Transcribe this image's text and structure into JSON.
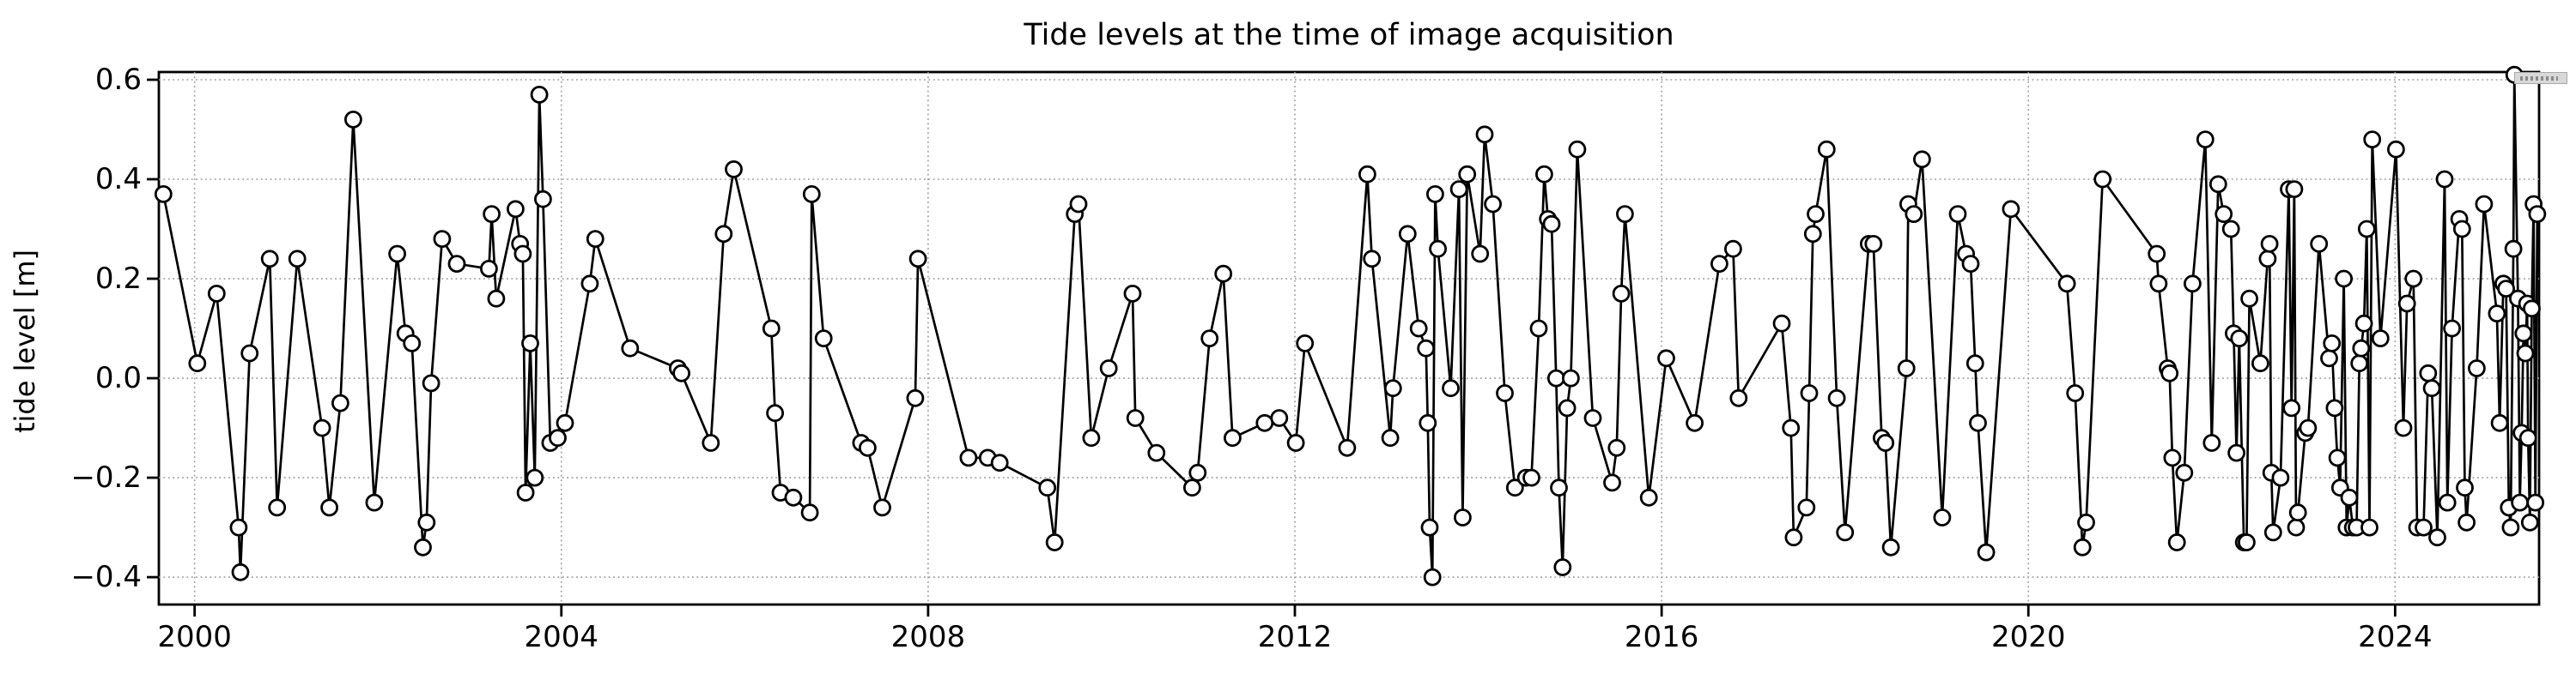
{
  "title": "Tide levels at the time of image acquisition",
  "y_axis_label": "tide level [m]",
  "colors": {
    "line": "#000000",
    "marker_fill": "#ffffff",
    "marker_stroke": "#000000",
    "grid": "#999999",
    "spine": "#000000",
    "background": "#ffffff",
    "artifact_fill": "#d8d8d8"
  },
  "chart_data": {
    "type": "line",
    "title": "Tide levels at the time of image acquisition",
    "xlabel": "",
    "ylabel": "tide level [m]",
    "series_name": "tide level",
    "marker": "open-circle",
    "grid": "dotted",
    "legend": "none",
    "xlim": [
      1999.61,
      2025.57
    ],
    "ylim": [
      -0.455,
      0.6155
    ],
    "xticks": [
      2000,
      2004,
      2008,
      2012,
      2016,
      2020,
      2024
    ],
    "xtick_labels": [
      "2000",
      "2004",
      "2008",
      "2012",
      "2016",
      "2020",
      "2024"
    ],
    "yticks": [
      0.6,
      0.4,
      0.2,
      0.0,
      -0.2,
      -0.4
    ],
    "ytick_labels": [
      "0.6",
      "0.4",
      "0.2",
      "0.0",
      "−0.2",
      "−0.4"
    ],
    "points": [
      [
        1999.66,
        0.37
      ],
      [
        2000.03,
        0.03
      ],
      [
        2000.24,
        0.17
      ],
      [
        2000.48,
        -0.3
      ],
      [
        2000.5,
        -0.39
      ],
      [
        2000.6,
        0.05
      ],
      [
        2000.82,
        0.24
      ],
      [
        2000.9,
        -0.26
      ],
      [
        2001.12,
        0.24
      ],
      [
        2001.39,
        -0.1
      ],
      [
        2001.47,
        -0.26
      ],
      [
        2001.59,
        -0.05
      ],
      [
        2001.73,
        0.52
      ],
      [
        2001.96,
        -0.25
      ],
      [
        2002.21,
        0.25
      ],
      [
        2002.3,
        0.09
      ],
      [
        2002.37,
        0.07
      ],
      [
        2002.49,
        -0.34
      ],
      [
        2002.53,
        -0.29
      ],
      [
        2002.58,
        -0.01
      ],
      [
        2002.7,
        0.28
      ],
      [
        2002.86,
        0.23
      ],
      [
        2003.21,
        0.22
      ],
      [
        2003.24,
        0.33
      ],
      [
        2003.29,
        0.16
      ],
      [
        2003.5,
        0.34
      ],
      [
        2003.55,
        0.27
      ],
      [
        2003.58,
        0.25
      ],
      [
        2003.61,
        -0.23
      ],
      [
        2003.66,
        0.07
      ],
      [
        2003.71,
        -0.2
      ],
      [
        2003.76,
        0.57
      ],
      [
        2003.8,
        0.36
      ],
      [
        2003.88,
        -0.13
      ],
      [
        2003.96,
        -0.12
      ],
      [
        2004.04,
        -0.09
      ],
      [
        2004.31,
        0.19
      ],
      [
        2004.37,
        0.28
      ],
      [
        2004.75,
        0.06
      ],
      [
        2005.27,
        0.02
      ],
      [
        2005.31,
        0.01
      ],
      [
        2005.63,
        -0.13
      ],
      [
        2005.77,
        0.29
      ],
      [
        2005.88,
        0.42
      ],
      [
        2006.29,
        0.1
      ],
      [
        2006.33,
        -0.07
      ],
      [
        2006.39,
        -0.23
      ],
      [
        2006.53,
        -0.24
      ],
      [
        2006.71,
        -0.27
      ],
      [
        2006.73,
        0.37
      ],
      [
        2006.86,
        0.08
      ],
      [
        2007.27,
        -0.13
      ],
      [
        2007.34,
        -0.14
      ],
      [
        2007.5,
        -0.26
      ],
      [
        2007.86,
        -0.04
      ],
      [
        2007.89,
        0.24
      ],
      [
        2008.44,
        -0.16
      ],
      [
        2008.65,
        -0.16
      ],
      [
        2008.78,
        -0.17
      ],
      [
        2009.3,
        -0.22
      ],
      [
        2009.38,
        -0.33
      ],
      [
        2009.6,
        0.33
      ],
      [
        2009.64,
        0.35
      ],
      [
        2009.78,
        -0.12
      ],
      [
        2009.97,
        0.02
      ],
      [
        2010.23,
        0.17
      ],
      [
        2010.26,
        -0.08
      ],
      [
        2010.49,
        -0.15
      ],
      [
        2010.88,
        -0.22
      ],
      [
        2010.94,
        -0.19
      ],
      [
        2011.07,
        0.08
      ],
      [
        2011.22,
        0.21
      ],
      [
        2011.32,
        -0.12
      ],
      [
        2011.67,
        -0.09
      ],
      [
        2011.83,
        -0.08
      ],
      [
        2012.01,
        -0.13
      ],
      [
        2012.11,
        0.07
      ],
      [
        2012.57,
        -0.14
      ],
      [
        2012.79,
        0.41
      ],
      [
        2012.84,
        0.24
      ],
      [
        2013.04,
        -0.12
      ],
      [
        2013.07,
        -0.02
      ],
      [
        2013.23,
        0.29
      ],
      [
        2013.35,
        0.1
      ],
      [
        2013.43,
        0.06
      ],
      [
        2013.45,
        -0.09
      ],
      [
        2013.47,
        -0.3
      ],
      [
        2013.5,
        -0.4
      ],
      [
        2013.53,
        0.37
      ],
      [
        2013.56,
        0.26
      ],
      [
        2013.7,
        -0.02
      ],
      [
        2013.79,
        0.38
      ],
      [
        2013.83,
        -0.28
      ],
      [
        2013.88,
        0.41
      ],
      [
        2014.02,
        0.25
      ],
      [
        2014.07,
        0.49
      ],
      [
        2014.16,
        0.35
      ],
      [
        2014.29,
        -0.03
      ],
      [
        2014.4,
        -0.22
      ],
      [
        2014.52,
        -0.2
      ],
      [
        2014.58,
        -0.2
      ],
      [
        2014.66,
        0.1
      ],
      [
        2014.72,
        0.41
      ],
      [
        2014.76,
        0.32
      ],
      [
        2014.8,
        0.31
      ],
      [
        2014.85,
        0.0
      ],
      [
        2014.88,
        -0.22
      ],
      [
        2014.92,
        -0.38
      ],
      [
        2014.97,
        -0.06
      ],
      [
        2015.01,
        0.0
      ],
      [
        2015.08,
        0.46
      ],
      [
        2015.25,
        -0.08
      ],
      [
        2015.46,
        -0.21
      ],
      [
        2015.51,
        -0.14
      ],
      [
        2015.56,
        0.17
      ],
      [
        2015.6,
        0.33
      ],
      [
        2015.86,
        -0.24
      ],
      [
        2016.05,
        0.04
      ],
      [
        2016.36,
        -0.09
      ],
      [
        2016.63,
        0.23
      ],
      [
        2016.78,
        0.26
      ],
      [
        2016.84,
        -0.04
      ],
      [
        2017.31,
        0.11
      ],
      [
        2017.41,
        -0.1
      ],
      [
        2017.44,
        -0.32
      ],
      [
        2017.58,
        -0.26
      ],
      [
        2017.61,
        -0.03
      ],
      [
        2017.65,
        0.29
      ],
      [
        2017.68,
        0.33
      ],
      [
        2017.8,
        0.46
      ],
      [
        2017.91,
        -0.04
      ],
      [
        2018.0,
        -0.31
      ],
      [
        2018.26,
        0.27
      ],
      [
        2018.31,
        0.27
      ],
      [
        2018.4,
        -0.12
      ],
      [
        2018.44,
        -0.13
      ],
      [
        2018.5,
        -0.34
      ],
      [
        2018.67,
        0.02
      ],
      [
        2018.69,
        0.35
      ],
      [
        2018.75,
        0.33
      ],
      [
        2018.84,
        0.44
      ],
      [
        2019.06,
        -0.28
      ],
      [
        2019.23,
        0.33
      ],
      [
        2019.32,
        0.25
      ],
      [
        2019.37,
        0.23
      ],
      [
        2019.42,
        0.03
      ],
      [
        2019.45,
        -0.09
      ],
      [
        2019.54,
        -0.35
      ],
      [
        2019.81,
        0.34
      ],
      [
        2020.42,
        0.19
      ],
      [
        2020.51,
        -0.03
      ],
      [
        2020.59,
        -0.34
      ],
      [
        2020.63,
        -0.29
      ],
      [
        2020.81,
        0.4
      ],
      [
        2021.4,
        0.25
      ],
      [
        2021.42,
        0.19
      ],
      [
        2021.52,
        0.02
      ],
      [
        2021.54,
        0.01
      ],
      [
        2021.57,
        -0.16
      ],
      [
        2021.62,
        -0.33
      ],
      [
        2021.7,
        -0.19
      ],
      [
        2021.79,
        0.19
      ],
      [
        2021.93,
        0.48
      ],
      [
        2022.0,
        -0.13
      ],
      [
        2022.07,
        0.39
      ],
      [
        2022.13,
        0.33
      ],
      [
        2022.21,
        0.3
      ],
      [
        2022.24,
        0.09
      ],
      [
        2022.27,
        -0.15
      ],
      [
        2022.3,
        0.08
      ],
      [
        2022.35,
        -0.33
      ],
      [
        2022.38,
        -0.33
      ],
      [
        2022.41,
        0.16
      ],
      [
        2022.53,
        0.03
      ],
      [
        2022.61,
        0.24
      ],
      [
        2022.63,
        0.27
      ],
      [
        2022.65,
        -0.19
      ],
      [
        2022.67,
        -0.31
      ],
      [
        2022.75,
        -0.2
      ],
      [
        2022.84,
        0.38
      ],
      [
        2022.87,
        -0.06
      ],
      [
        2022.9,
        0.38
      ],
      [
        2022.92,
        -0.3
      ],
      [
        2022.94,
        -0.27
      ],
      [
        2023.02,
        -0.11
      ],
      [
        2023.05,
        -0.1
      ],
      [
        2023.17,
        0.27
      ],
      [
        2023.28,
        0.04
      ],
      [
        2023.31,
        0.07
      ],
      [
        2023.34,
        -0.06
      ],
      [
        2023.37,
        -0.16
      ],
      [
        2023.4,
        -0.22
      ],
      [
        2023.44,
        0.2
      ],
      [
        2023.47,
        -0.3
      ],
      [
        2023.5,
        -0.24
      ],
      [
        2023.54,
        -0.3
      ],
      [
        2023.58,
        -0.3
      ],
      [
        2023.61,
        0.03
      ],
      [
        2023.63,
        0.06
      ],
      [
        2023.66,
        0.11
      ],
      [
        2023.69,
        0.3
      ],
      [
        2023.72,
        -0.3
      ],
      [
        2023.75,
        0.48
      ],
      [
        2023.84,
        0.08
      ],
      [
        2024.01,
        0.46
      ],
      [
        2024.09,
        -0.1
      ],
      [
        2024.13,
        0.15
      ],
      [
        2024.2,
        0.2
      ],
      [
        2024.24,
        -0.3
      ],
      [
        2024.31,
        -0.3
      ],
      [
        2024.36,
        0.01
      ],
      [
        2024.4,
        -0.02
      ],
      [
        2024.46,
        -0.32
      ],
      [
        2024.54,
        0.4
      ],
      [
        2024.57,
        -0.25
      ],
      [
        2024.62,
        0.1
      ],
      [
        2024.7,
        0.32
      ],
      [
        2024.73,
        0.3
      ],
      [
        2024.76,
        -0.22
      ],
      [
        2024.78,
        -0.29
      ],
      [
        2024.89,
        0.02
      ],
      [
        2024.97,
        0.35
      ],
      [
        2025.11,
        0.13
      ],
      [
        2025.14,
        -0.09
      ],
      [
        2025.18,
        0.19
      ],
      [
        2025.21,
        0.18
      ],
      [
        2025.24,
        -0.26
      ],
      [
        2025.26,
        -0.3
      ],
      [
        2025.29,
        0.26
      ],
      [
        2025.3,
        0.61
      ],
      [
        2025.34,
        0.16
      ],
      [
        2025.36,
        -0.25
      ],
      [
        2025.38,
        -0.11
      ],
      [
        2025.4,
        0.09
      ],
      [
        2025.42,
        0.05
      ],
      [
        2025.44,
        0.15
      ],
      [
        2025.45,
        -0.12
      ],
      [
        2025.47,
        -0.29
      ],
      [
        2025.49,
        0.14
      ],
      [
        2025.51,
        0.35
      ],
      [
        2025.53,
        -0.25
      ],
      [
        2025.55,
        0.33
      ]
    ]
  }
}
